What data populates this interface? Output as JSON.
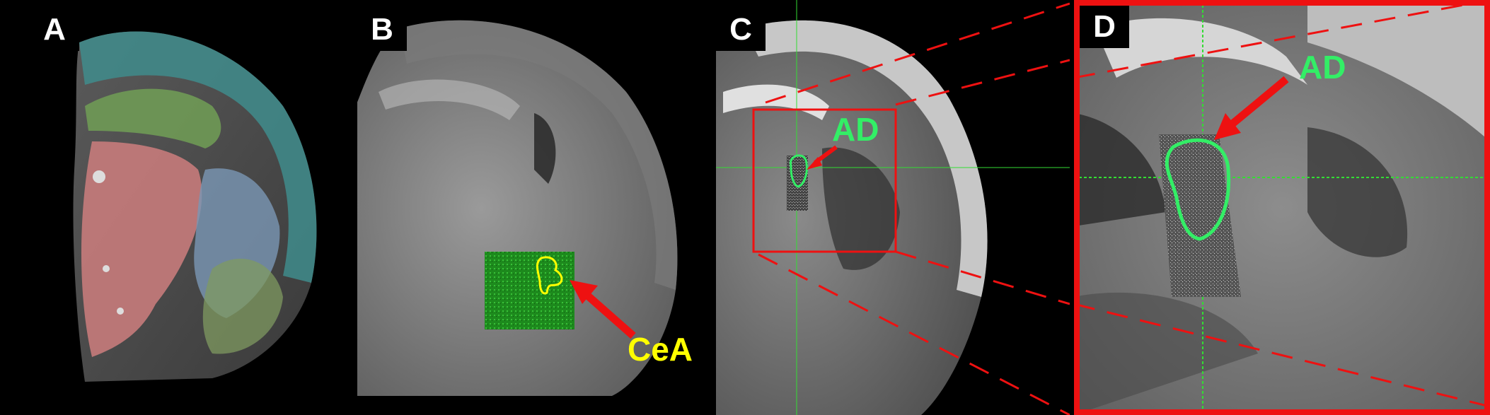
{
  "panels": {
    "a": {
      "letter": "A"
    },
    "b": {
      "letter": "B",
      "region_label": "CeA",
      "region_color": "#ffff00",
      "inset_color": "#22cc22"
    },
    "c": {
      "letter": "C",
      "region_label": "AD",
      "region_color": "#33ee66",
      "box_color": "#ee1111"
    },
    "d": {
      "letter": "D",
      "region_label": "AD",
      "region_color": "#33ee66",
      "frame_color": "#ee1111"
    }
  },
  "colors": {
    "arrow": "#ee1111",
    "crosshair": "#33dd33",
    "background": "#000000"
  }
}
